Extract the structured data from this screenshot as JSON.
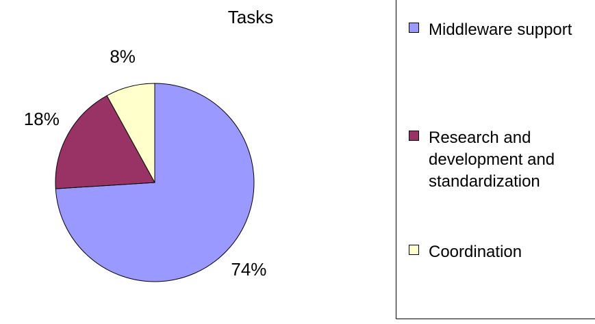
{
  "chart_data": {
    "type": "pie",
    "title": "Tasks",
    "categories": [
      "Middleware support",
      "Research and development and standardization",
      "Coordination"
    ],
    "values": [
      74,
      18,
      8
    ],
    "value_labels": [
      "74%",
      "18%",
      "8%"
    ],
    "colors": [
      "#9999ff",
      "#993366",
      "#ffffcc"
    ],
    "legend": "right"
  }
}
